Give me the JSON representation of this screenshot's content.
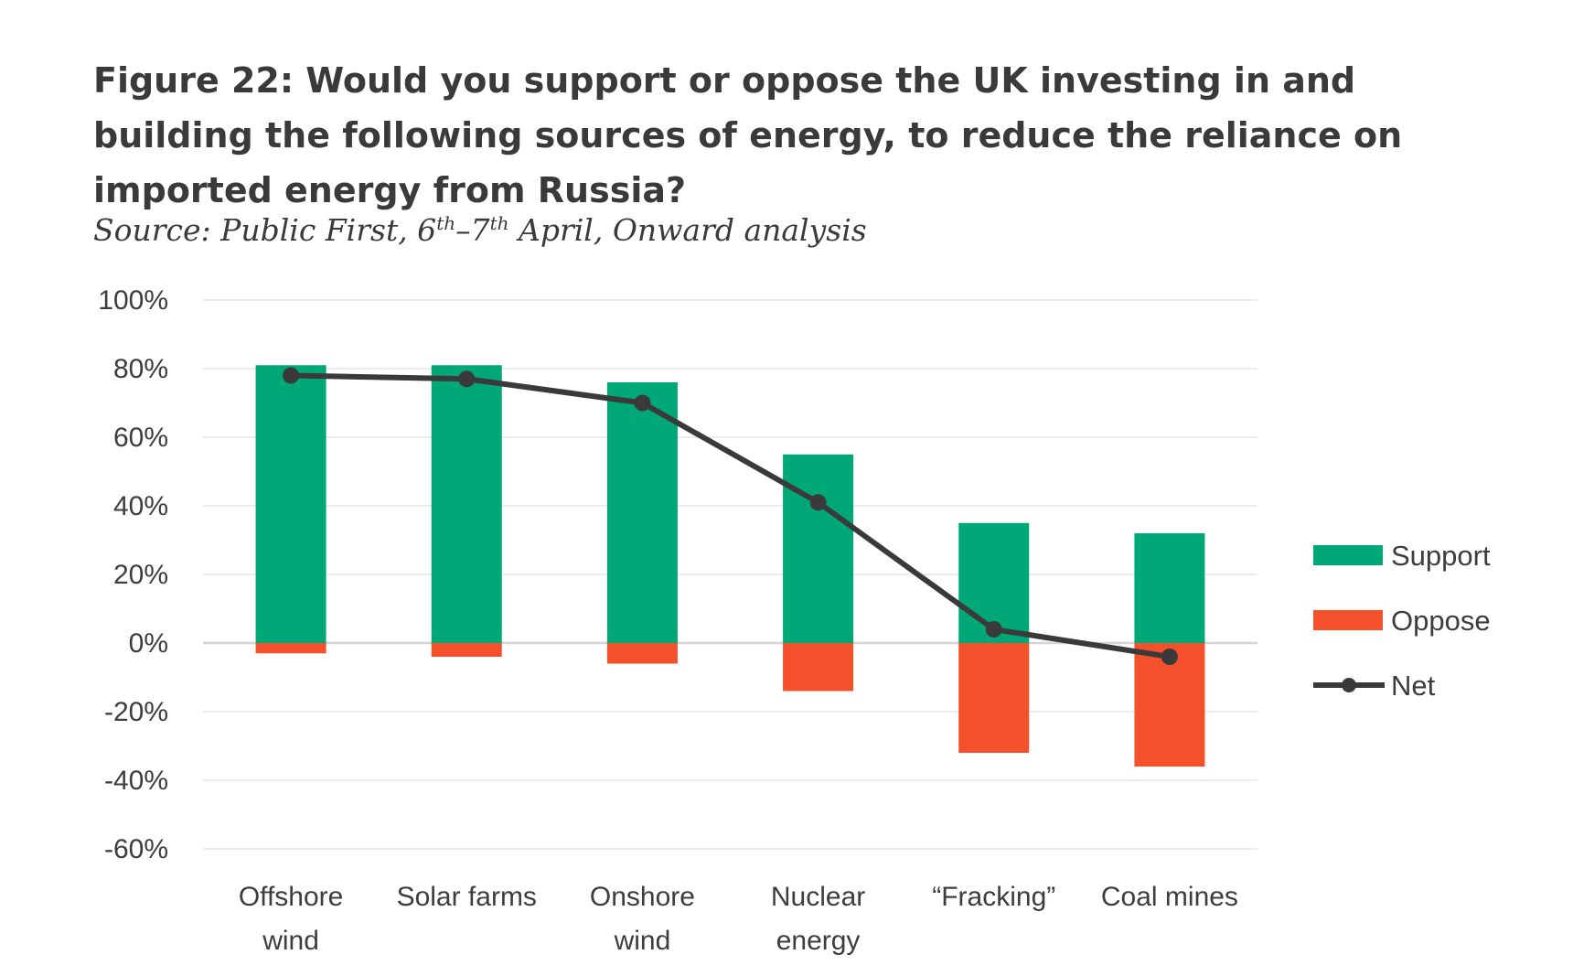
{
  "title": "Figure 22: Would you support or oppose the UK investing in and building the following sources of energy, to reduce the reliance on imported energy from Russia?",
  "subtitle": {
    "pre": "Source: Public First, 6",
    "sup1": "th",
    "mid": "–7",
    "sup2": "th",
    "post": " April, Onward analysis"
  },
  "colors": {
    "support": "#00A878",
    "oppose": "#F4502C",
    "net": "#3a3a3a",
    "grid": "#ececec",
    "zero_line": "#d4d4d4"
  },
  "chart_data": {
    "type": "bar",
    "categories": [
      [
        "Offshore",
        "wind"
      ],
      [
        "Solar farms"
      ],
      [
        "Onshore",
        "wind"
      ],
      [
        "Nuclear",
        "energy"
      ],
      [
        "“Fracking”"
      ],
      [
        "Coal mines"
      ]
    ],
    "series": [
      {
        "name": "Support",
        "kind": "bar",
        "values": [
          81,
          81,
          76,
          55,
          35,
          32
        ]
      },
      {
        "name": "Oppose",
        "kind": "bar",
        "values": [
          -3,
          -4,
          -6,
          -14,
          -32,
          -36
        ]
      },
      {
        "name": "Net",
        "kind": "line",
        "values": [
          78,
          77,
          70,
          41,
          4,
          -4
        ]
      }
    ],
    "ylim": [
      -60,
      100
    ],
    "yticks": [
      100,
      80,
      60,
      40,
      20,
      0,
      -20,
      -40,
      -60
    ],
    "ytick_labels": [
      "100%",
      "80%",
      "60%",
      "40%",
      "20%",
      "0%",
      "-20%",
      "-40%",
      "-60%"
    ],
    "grid": true,
    "legend": {
      "position": "right",
      "entries": [
        "Support",
        "Oppose",
        "Net"
      ]
    }
  }
}
